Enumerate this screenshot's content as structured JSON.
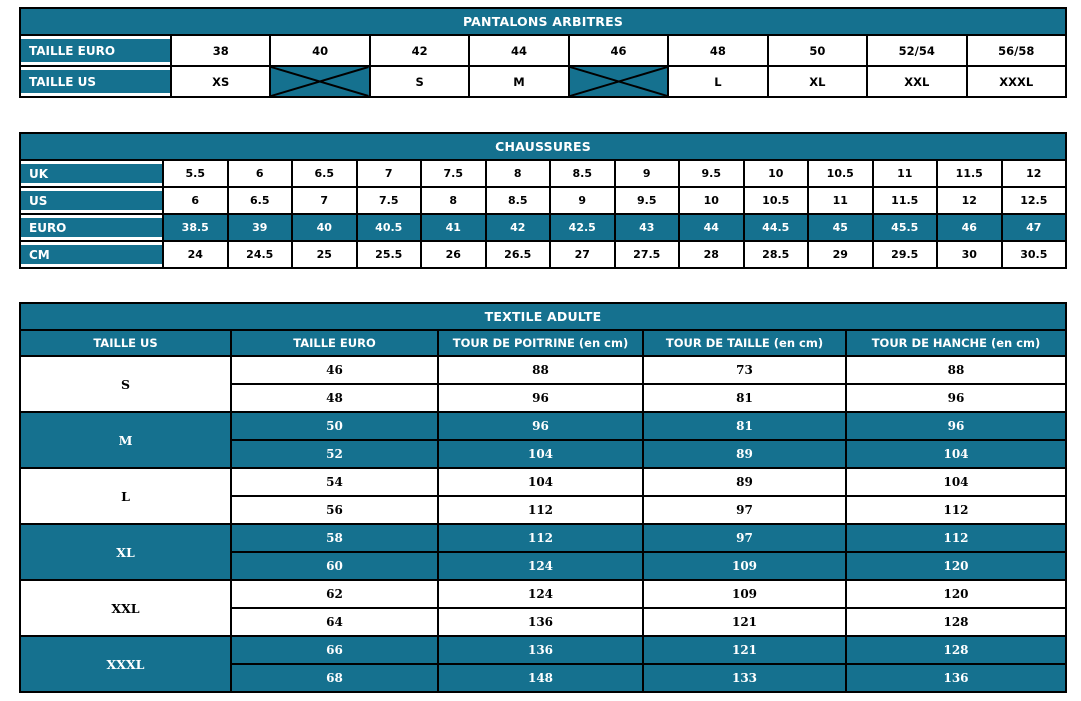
{
  "colors": {
    "teal": "#15718f",
    "grid_border": "#000000",
    "text_on_teal": "#ffffff",
    "text_on_white": "#000000"
  },
  "tables": {
    "pantalons": {
      "title": "PANTALONS ARBITRES",
      "rows": [
        {
          "label": "TAILLE EURO",
          "cells": [
            "38",
            "40",
            "42",
            "44",
            "46",
            "48",
            "50",
            "52/54",
            "56/58"
          ]
        },
        {
          "label": "TAILLE US",
          "cells": [
            "XS",
            "",
            "S",
            "M",
            "",
            "L",
            "XL",
            "XXL",
            "XXXL"
          ],
          "crossed_columns": [
            1,
            4
          ]
        }
      ]
    },
    "chaussures": {
      "title": "CHAUSSURES",
      "rows": [
        {
          "label": "UK",
          "highlight": false,
          "cells": [
            "5.5",
            "6",
            "6.5",
            "7",
            "7.5",
            "8",
            "8.5",
            "9",
            "9.5",
            "10",
            "10.5",
            "11",
            "11.5",
            "12"
          ]
        },
        {
          "label": "US",
          "highlight": false,
          "cells": [
            "6",
            "6.5",
            "7",
            "7.5",
            "8",
            "8.5",
            "9",
            "9.5",
            "10",
            "10.5",
            "11",
            "11.5",
            "12",
            "12.5"
          ]
        },
        {
          "label": "EURO",
          "highlight": true,
          "cells": [
            "38.5",
            "39",
            "40",
            "40.5",
            "41",
            "42",
            "42.5",
            "43",
            "44",
            "44.5",
            "45",
            "45.5",
            "46",
            "47"
          ]
        },
        {
          "label": "CM",
          "highlight": false,
          "cells": [
            "24",
            "24.5",
            "25",
            "25.5",
            "26",
            "26.5",
            "27",
            "27.5",
            "28",
            "28.5",
            "29",
            "29.5",
            "30",
            "30.5"
          ]
        }
      ]
    },
    "textile": {
      "title": "TEXTILE ADULTE",
      "headers": [
        "TAILLE US",
        "TAILLE EURO",
        "TOUR DE POITRINE (en cm)",
        "TOUR DE TAILLE (en cm)",
        "TOUR DE HANCHE (en cm)"
      ],
      "groups": [
        {
          "size": "S",
          "highlight": false,
          "rows": [
            [
              "46",
              "88",
              "73",
              "88"
            ],
            [
              "48",
              "96",
              "81",
              "96"
            ]
          ]
        },
        {
          "size": "M",
          "highlight": true,
          "rows": [
            [
              "50",
              "96",
              "81",
              "96"
            ],
            [
              "52",
              "104",
              "89",
              "104"
            ]
          ]
        },
        {
          "size": "L",
          "highlight": false,
          "rows": [
            [
              "54",
              "104",
              "89",
              "104"
            ],
            [
              "56",
              "112",
              "97",
              "112"
            ]
          ]
        },
        {
          "size": "XL",
          "highlight": true,
          "rows": [
            [
              "58",
              "112",
              "97",
              "112"
            ],
            [
              "60",
              "124",
              "109",
              "120"
            ]
          ]
        },
        {
          "size": "XXL",
          "highlight": false,
          "rows": [
            [
              "62",
              "124",
              "109",
              "120"
            ],
            [
              "64",
              "136",
              "121",
              "128"
            ]
          ]
        },
        {
          "size": "XXXL",
          "highlight": true,
          "rows": [
            [
              "66",
              "136",
              "121",
              "128"
            ],
            [
              "68",
              "148",
              "133",
              "136"
            ]
          ]
        }
      ]
    }
  }
}
